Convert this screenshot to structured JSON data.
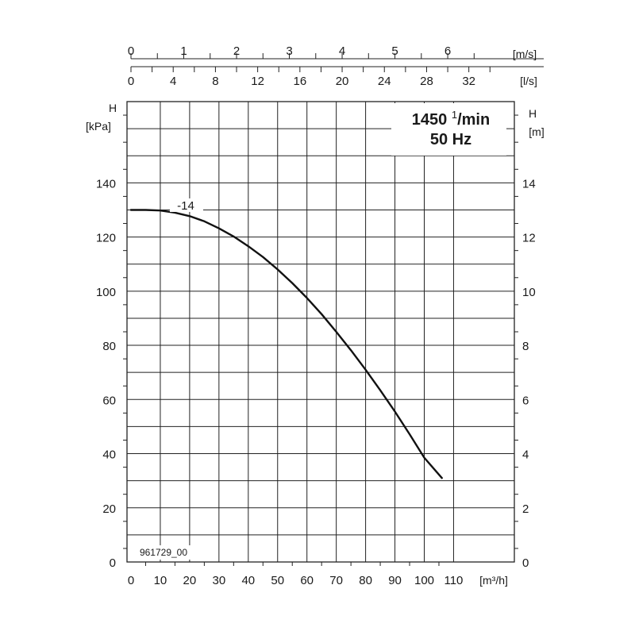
{
  "speed_box": {
    "line1_main": "1450 ",
    "line1_sup": "1",
    "line1_rest": "/min",
    "line2": "50 Hz"
  },
  "figure_id": "961729_00",
  "chart_data": {
    "type": "line",
    "title": "",
    "grid": true,
    "x_axis": {
      "label": "[m³/h]",
      "range": [
        0,
        115
      ],
      "ticks": [
        0,
        10,
        20,
        30,
        40,
        50,
        60,
        70,
        80,
        90,
        100,
        110
      ],
      "tick_labels": [
        "0",
        "10",
        "20",
        "30",
        "40",
        "50",
        "60",
        "70",
        "80",
        "90",
        "100",
        "110"
      ]
    },
    "top_axis_ms": {
      "label": "[m/s]",
      "ticks": [
        0,
        1,
        2,
        3,
        4,
        5,
        6
      ],
      "tick_labels": [
        "0",
        "1",
        "2",
        "3",
        "4",
        "5",
        "6"
      ],
      "m3h_per_unit": 18.0
    },
    "top_axis_ls": {
      "label": "[l/s]",
      "ticks": [
        0,
        4,
        8,
        12,
        16,
        20,
        24,
        28,
        32
      ],
      "tick_labels": [
        "0",
        "4",
        "8",
        "12",
        "16",
        "20",
        "24",
        "28",
        "32"
      ],
      "m3h_per_unit": 3.6
    },
    "y_left": {
      "label_line1": "H",
      "label_line2": "[kPa]",
      "range": [
        0,
        170
      ],
      "ticks": [
        0,
        20,
        40,
        60,
        80,
        100,
        120,
        140
      ],
      "tick_labels": [
        "0",
        "20",
        "40",
        "60",
        "80",
        "100",
        "120",
        "140"
      ]
    },
    "y_right": {
      "label_line1": "H",
      "label_line2": "[m]",
      "range": [
        0,
        17
      ],
      "ticks": [
        0,
        2,
        4,
        6,
        8,
        10,
        12,
        14
      ],
      "tick_labels": [
        "0",
        "2",
        "4",
        "6",
        "8",
        "10",
        "12",
        "14"
      ]
    },
    "series": [
      {
        "name": "-14",
        "x": [
          0,
          5,
          10,
          15,
          20,
          25,
          30,
          35,
          40,
          45,
          50,
          55,
          60,
          65,
          70,
          75,
          80,
          85,
          90,
          95,
          100,
          106
        ],
        "y": [
          130,
          130,
          129.8,
          129,
          127.7,
          125.8,
          123.2,
          120.2,
          116.6,
          112.6,
          108,
          103,
          97.5,
          91.5,
          85,
          78.2,
          71,
          63.4,
          55.5,
          47.2,
          38.5,
          31
        ]
      }
    ]
  }
}
